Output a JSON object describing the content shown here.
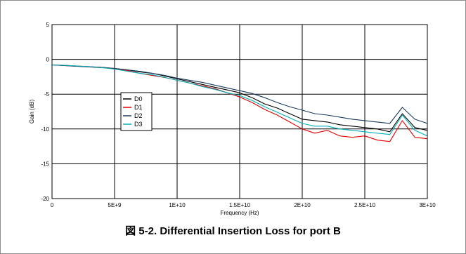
{
  "caption": "図 5-2. Differential Insertion Loss for port B",
  "chart_data": {
    "type": "line",
    "title": "",
    "xlabel": "Frequency (Hz)",
    "ylabel": "Gain (dB)",
    "xlim": [
      0,
      30000000000
    ],
    "ylim": [
      -20,
      5
    ],
    "x_ticks": [
      0,
      5000000000,
      10000000000,
      15000000000,
      20000000000,
      25000000000,
      30000000000
    ],
    "x_tick_labels": [
      "0",
      "5E+9",
      "1E+10",
      "1.5E+10",
      "2E+10",
      "2.5E+10",
      "3E+10"
    ],
    "y_ticks": [
      5,
      0,
      -5,
      -10,
      -15,
      -20
    ],
    "y_tick_labels": [
      "5",
      "0",
      "-5",
      "-10",
      "-15",
      "-20"
    ],
    "grid": true,
    "legend_position": "center-left",
    "x": [
      0,
      1000000000,
      2000000000,
      3000000000,
      4000000000,
      5000000000,
      6000000000,
      7000000000,
      8000000000,
      9000000000,
      10000000000,
      11000000000,
      12000000000,
      13000000000,
      14000000000,
      15000000000,
      16000000000,
      17000000000,
      18000000000,
      19000000000,
      20000000000,
      21000000000,
      22000000000,
      23000000000,
      24000000000,
      25000000000,
      26000000000,
      27000000000,
      28000000000,
      29000000000,
      30000000000
    ],
    "series": [
      {
        "name": "D0",
        "color": "#000000",
        "values": [
          -0.8,
          -0.9,
          -1.0,
          -1.1,
          -1.2,
          -1.3,
          -1.5,
          -1.8,
          -2.0,
          -2.4,
          -2.8,
          -3.2,
          -3.6,
          -4.0,
          -4.4,
          -4.8,
          -5.5,
          -6.4,
          -7.0,
          -7.8,
          -8.6,
          -8.8,
          -9.0,
          -9.4,
          -9.6,
          -9.8,
          -10.0,
          -10.4,
          -7.8,
          -9.8,
          -10.2
        ]
      },
      {
        "name": "D1",
        "color": "#e00000",
        "values": [
          -0.8,
          -0.85,
          -0.95,
          -1.05,
          -1.15,
          -1.3,
          -1.6,
          -2.0,
          -2.3,
          -2.6,
          -3.0,
          -3.4,
          -3.8,
          -4.2,
          -4.8,
          -5.4,
          -6.2,
          -7.2,
          -8.0,
          -9.0,
          -10.0,
          -10.6,
          -10.2,
          -11.0,
          -11.2,
          -11.0,
          -11.6,
          -11.8,
          -8.8,
          -11.2,
          -11.4
        ]
      },
      {
        "name": "D2",
        "color": "#1a3a5a",
        "values": [
          -0.8,
          -0.9,
          -1.0,
          -1.05,
          -1.15,
          -1.3,
          -1.5,
          -1.7,
          -2.0,
          -2.3,
          -2.7,
          -3.0,
          -3.3,
          -3.7,
          -4.1,
          -4.5,
          -4.9,
          -5.5,
          -6.2,
          -6.8,
          -7.3,
          -7.8,
          -8.0,
          -8.3,
          -8.6,
          -8.8,
          -9.0,
          -9.2,
          -6.9,
          -8.6,
          -9.2
        ]
      },
      {
        "name": "D3",
        "color": "#00b0b8",
        "values": [
          -0.8,
          -0.85,
          -0.95,
          -1.05,
          -1.2,
          -1.4,
          -1.7,
          -2.0,
          -2.2,
          -2.6,
          -3.0,
          -3.4,
          -3.9,
          -4.3,
          -4.8,
          -5.2,
          -5.9,
          -6.8,
          -7.6,
          -8.4,
          -9.2,
          -9.6,
          -9.6,
          -10.0,
          -10.2,
          -10.4,
          -10.6,
          -10.8,
          -8.0,
          -10.2,
          -11.0
        ]
      }
    ]
  }
}
